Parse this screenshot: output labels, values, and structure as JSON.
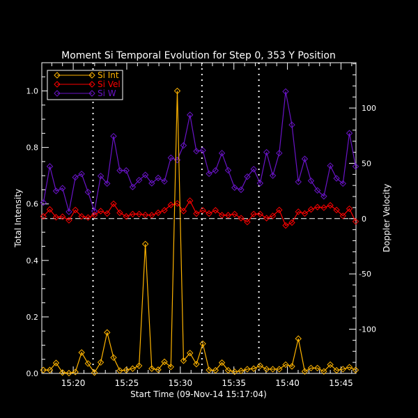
{
  "chart_data": {
    "type": "line",
    "title": "Moment Si Temporal Evolution for Step 0, 353 Y Position",
    "xlabel": "Start Time (09-Nov-14 15:17:04)",
    "ylabel": "Total Intensity",
    "ylabel_right": "Doppler Velocity",
    "xlim": [
      "15:17:04",
      "15:46:24"
    ],
    "ylim": [
      0,
      1.1
    ],
    "ylim_right": [
      -140,
      141
    ],
    "x_ticks": [
      "15:20",
      "15:25",
      "15:30",
      "15:35",
      "15:40",
      "15:45"
    ],
    "y_ticks": [
      "0.0",
      "0.2",
      "0.4",
      "0.6",
      "0.8",
      "1.0"
    ],
    "y_ticks_right": [
      "-100",
      "-50",
      "0",
      "50",
      "100"
    ],
    "grid": false,
    "legend_placement": "top-left",
    "zero_line_right": 0,
    "vertical_markers": [
      "15:21:51",
      "15:32:01",
      "15:37:20"
    ],
    "x": [
      "15:17:13",
      "15:17:49",
      "15:18:24",
      "15:19:00",
      "15:19:36",
      "15:20:12",
      "15:20:47",
      "15:21:23",
      "15:21:59",
      "15:22:34",
      "15:23:10",
      "15:23:46",
      "15:24:21",
      "15:24:57",
      "15:25:33",
      "15:26:09",
      "15:26:44",
      "15:27:20",
      "15:27:56",
      "15:28:31",
      "15:29:07",
      "15:29:43",
      "15:30:18",
      "15:30:54",
      "15:31:30",
      "15:32:06",
      "15:32:41",
      "15:33:17",
      "15:33:53",
      "15:34:28",
      "15:35:04",
      "15:35:40",
      "15:36:15",
      "15:36:51",
      "15:37:27",
      "15:38:03",
      "15:38:38",
      "15:39:14",
      "15:39:50",
      "15:40:25",
      "15:41:01",
      "15:41:37",
      "15:42:12",
      "15:42:48",
      "15:43:24",
      "15:44:00",
      "15:44:35",
      "15:45:11",
      "15:45:47",
      "15:46:22"
    ],
    "series": [
      {
        "name": "Si Int",
        "axis": "left",
        "color": "#ffb400",
        "values": [
          0.012,
          0.012,
          0.037,
          0.003,
          0.001,
          0.005,
          0.074,
          0.035,
          0.003,
          0.039,
          0.145,
          0.056,
          0.01,
          0.012,
          0.017,
          0.027,
          0.458,
          0.017,
          0.013,
          0.041,
          0.023,
          1.0,
          0.045,
          0.072,
          0.033,
          0.105,
          0.012,
          0.011,
          0.038,
          0.011,
          0.006,
          0.009,
          0.015,
          0.017,
          0.027,
          0.015,
          0.015,
          0.015,
          0.031,
          0.025,
          0.123,
          0.007,
          0.019,
          0.019,
          0.007,
          0.031,
          0.011,
          0.015,
          0.022,
          0.012
        ]
      },
      {
        "name": "Si Vel",
        "axis": "right",
        "color": "#ff0000",
        "values": [
          2.0,
          8.3,
          1.2,
          1.7,
          -1.5,
          7.8,
          2.0,
          1.0,
          3.3,
          6.8,
          4.6,
          13.4,
          5.3,
          2.0,
          4.1,
          4.1,
          3.3,
          3.1,
          5.3,
          7.5,
          12.4,
          13.7,
          6.8,
          16.2,
          4.5,
          7.5,
          4.6,
          7.5,
          3.1,
          3.1,
          4.1,
          0.4,
          -3.1,
          4.1,
          4.1,
          0.4,
          2.5,
          7.8,
          -6.2,
          -3.6,
          6.2,
          4.6,
          8.3,
          10.4,
          9.9,
          12.0,
          7.8,
          2.5,
          8.9,
          -2.6
        ]
      },
      {
        "name": "Si W",
        "axis": "right",
        "color": "#6a14c8",
        "values": [
          14.5,
          47.2,
          25.0,
          27.5,
          6.2,
          37.3,
          40.4,
          24.0,
          6.8,
          38.5,
          31.7,
          74.5,
          43.5,
          43.5,
          28.6,
          34.8,
          39.5,
          32.0,
          36.8,
          33.7,
          55.0,
          53.0,
          66.2,
          93.8,
          61.0,
          61.7,
          40.6,
          43.5,
          59.2,
          43.7,
          28.0,
          26.1,
          37.9,
          44.7,
          32.0,
          60.0,
          38.9,
          59.2,
          114.9,
          84.8,
          33.3,
          54.0,
          34.2,
          25.5,
          20.2,
          47.8,
          36.4,
          31.7,
          77.2,
          47.2
        ]
      }
    ]
  }
}
